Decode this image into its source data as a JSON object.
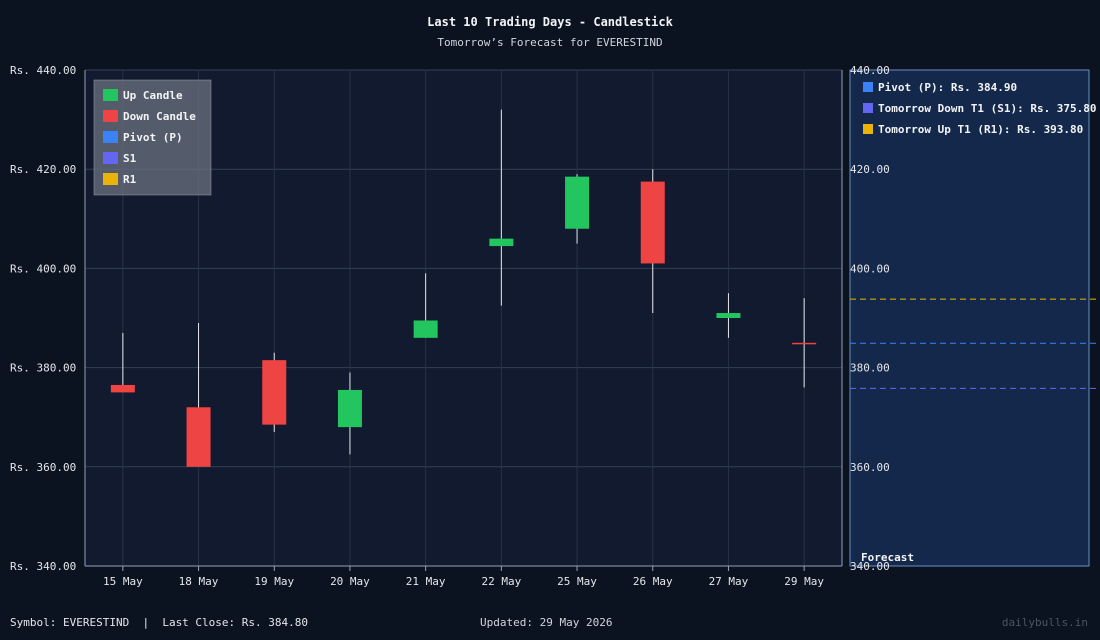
{
  "header": {
    "title": "Last 10 Trading Days - Candlestick",
    "subtitle": "Tomorrow’s Forecast for EVERESTIND"
  },
  "footer": {
    "symbol_text": "Symbol: EVERESTIND  |  Last Close: Rs. 384.80",
    "updated_text": "Updated: 29 May 2026",
    "brand": "dailybulls.in"
  },
  "colors": {
    "up": "#22c55e",
    "down": "#ef4444",
    "pivot": "#3b82f6",
    "s1": "#6366f1",
    "r1": "#eab308",
    "plot_bg": "#111a2e",
    "forecast_bg": "#13284a",
    "grid": "#334155",
    "wick": "#e5e7eb"
  },
  "chart_data": {
    "type": "candlestick",
    "currency_prefix": "Rs. ",
    "ylim": [
      340,
      440
    ],
    "yticks": [
      "Rs. 340.00",
      "Rs. 360.00",
      "Rs. 380.00",
      "Rs. 400.00",
      "Rs. 420.00",
      "Rs. 440.00"
    ],
    "right_yticks": [
      "340.00",
      "360.00",
      "380.00",
      "400.00",
      "420.00",
      "440.00"
    ],
    "ytick_values": [
      340,
      360,
      380,
      400,
      420,
      440
    ],
    "grid": true,
    "categories": [
      "15 May",
      "18 May",
      "19 May",
      "20 May",
      "21 May",
      "22 May",
      "25 May",
      "26 May",
      "27 May",
      "29 May"
    ],
    "candles": [
      {
        "date": "15 May",
        "open": 376.5,
        "high": 387.0,
        "low": 375.0,
        "close": 375.0
      },
      {
        "date": "18 May",
        "open": 372.0,
        "high": 389.0,
        "low": 360.0,
        "close": 360.0
      },
      {
        "date": "19 May",
        "open": 381.5,
        "high": 383.0,
        "low": 367.0,
        "close": 368.5
      },
      {
        "date": "20 May",
        "open": 368.0,
        "high": 379.0,
        "low": 362.5,
        "close": 375.5
      },
      {
        "date": "21 May",
        "open": 386.0,
        "high": 399.0,
        "low": 386.0,
        "close": 389.5
      },
      {
        "date": "22 May",
        "open": 404.5,
        "high": 432.0,
        "low": 392.5,
        "close": 406.0
      },
      {
        "date": "25 May",
        "open": 408.0,
        "high": 419.0,
        "low": 405.0,
        "close": 418.5
      },
      {
        "date": "26 May",
        "open": 417.5,
        "high": 420.0,
        "low": 391.0,
        "close": 401.0
      },
      {
        "date": "27 May",
        "open": 390.0,
        "high": 395.0,
        "low": 386.0,
        "close": 391.0
      },
      {
        "date": "29 May",
        "open": 385.0,
        "high": 394.0,
        "low": 376.0,
        "close": 384.8
      }
    ],
    "legend": {
      "placement": "top-left",
      "items": [
        {
          "label": "Up Candle",
          "color_key": "up"
        },
        {
          "label": "Down Candle",
          "color_key": "down"
        },
        {
          "label": "Pivot (P)",
          "color_key": "pivot"
        },
        {
          "label": "S1",
          "color_key": "s1"
        },
        {
          "label": "R1",
          "color_key": "r1"
        }
      ]
    },
    "forecast": {
      "panel_label": "Forecast",
      "levels": [
        {
          "label": "Pivot (P): Rs. 384.90",
          "value": 384.9,
          "color_key": "pivot"
        },
        {
          "label": "Tomorrow Down T1 (S1): Rs. 375.80",
          "value": 375.8,
          "color_key": "s1"
        },
        {
          "label": "Tomorrow Up T1 (R1): Rs. 393.80",
          "value": 393.8,
          "color_key": "r1"
        }
      ]
    }
  }
}
